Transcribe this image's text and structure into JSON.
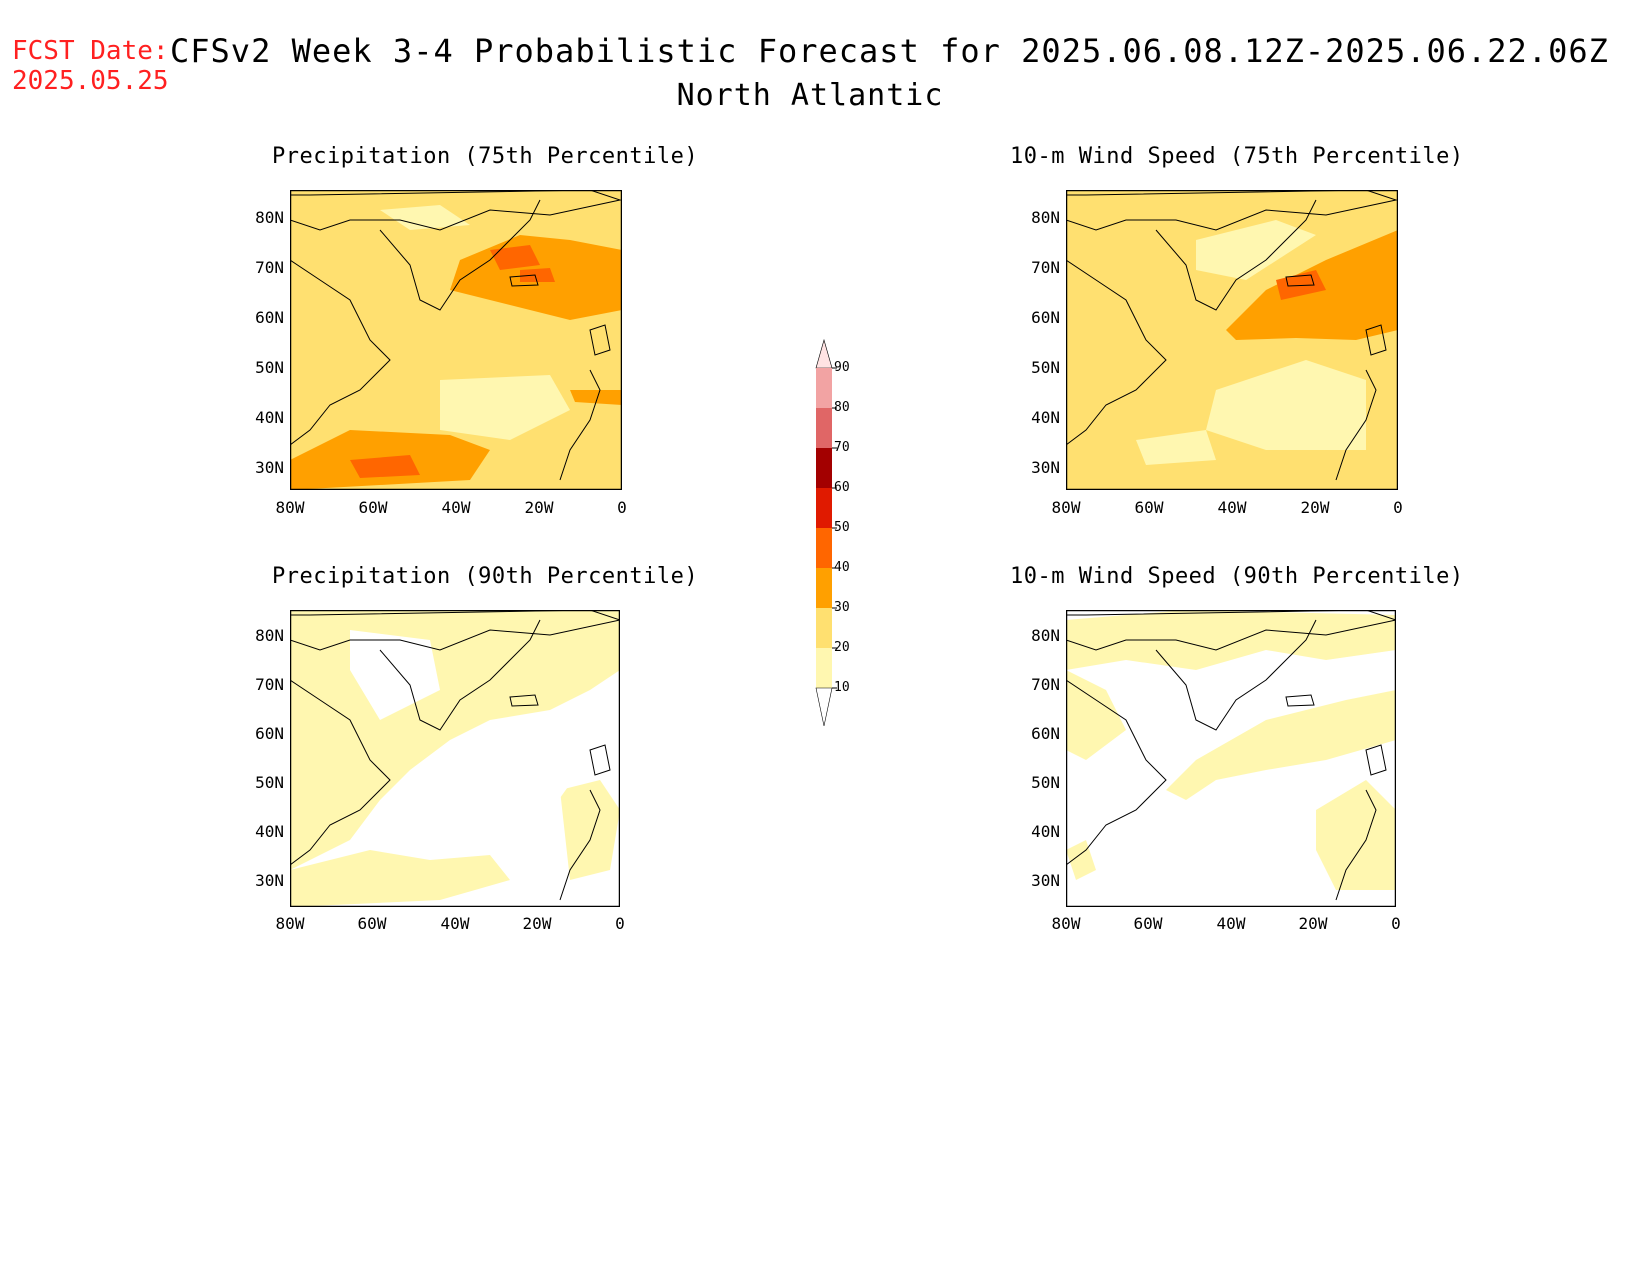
{
  "header": {
    "fcst_label": "FCST Date:",
    "fcst_date": "2025.05.25",
    "title": "CFSv2 Week 3-4 Probabilistic Forecast for 2025.06.08.12Z-2025.06.22.06Z",
    "region": "North Atlantic"
  },
  "axes": {
    "lat_labels": [
      "80N",
      "70N",
      "60N",
      "50N",
      "40N",
      "30N"
    ],
    "lon_labels": [
      "80W",
      "60W",
      "40W",
      "20W",
      "0"
    ]
  },
  "panels": [
    {
      "title": "Precipitation (75th Percentile)"
    },
    {
      "title": "10-m Wind Speed (75th Percentile)"
    },
    {
      "title": "Precipitation (90th Percentile)"
    },
    {
      "title": "10-m Wind Speed (90th Percentile)"
    }
  ],
  "colorbar": {
    "levels": [
      "90",
      "80",
      "70",
      "60",
      "50",
      "40",
      "30",
      "20",
      "10"
    ],
    "colors": [
      "#ffe3e3",
      "#f2a3a3",
      "#e06666",
      "#a30000",
      "#e01a00",
      "#ff6600",
      "#ffa000",
      "#ffe070",
      "#fff7b0"
    ]
  }
}
